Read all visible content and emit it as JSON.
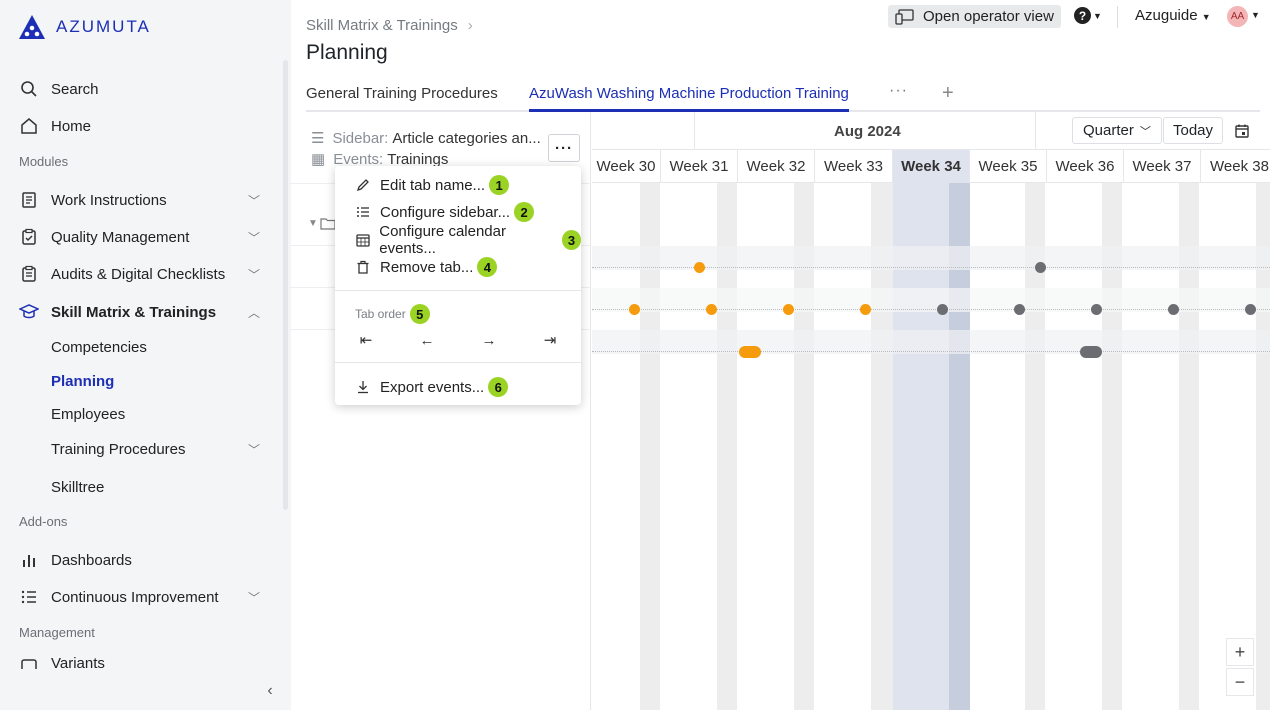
{
  "app": {
    "logo_text": "AZUMUTA"
  },
  "sidebar": {
    "search": "Search",
    "home": "Home",
    "section_modules": "Modules",
    "work_instructions": "Work Instructions",
    "quality_management": "Quality Management",
    "audits": "Audits & Digital Checklists",
    "skill_matrix": "Skill Matrix & Trainings",
    "sub": {
      "competencies": "Competencies",
      "planning": "Planning",
      "employees": "Employees",
      "training_procedures": "Training Procedures",
      "skilltree": "Skilltree"
    },
    "section_addons": "Add-ons",
    "dashboards": "Dashboards",
    "continuous_improvement": "Continuous Improvement",
    "section_management": "Management",
    "variants": "Variants"
  },
  "header": {
    "breadcrumb": "Skill Matrix & Trainings",
    "title": "Planning",
    "operator_view": "Open operator view",
    "workspace": "Azuguide",
    "avatar": "AA"
  },
  "tabs": {
    "tab1": "General Training Procedures",
    "tab2": "AzuWash Washing Machine Production Training"
  },
  "panel": {
    "sidebar_key": "Sidebar:",
    "sidebar_value": "Article categories an...",
    "events_key": "Events:",
    "events_value": "Trainings"
  },
  "menu": {
    "edit_tab": "Edit tab name...",
    "configure_sidebar": "Configure sidebar...",
    "configure_calendar": "Configure calendar events...",
    "remove_tab": "Remove tab...",
    "tab_order": "Tab order",
    "export_events": "Export events...",
    "badges": {
      "b1": "1",
      "b2": "2",
      "b3": "3",
      "b4": "4",
      "b5": "5",
      "b6": "6"
    }
  },
  "calendar": {
    "month": "Aug 2024",
    "view": "Quarter",
    "today": "Today",
    "weeks": [
      "Week 30",
      "Week 31",
      "Week 32",
      "Week 33",
      "Week 34",
      "Week 35",
      "Week 36",
      "Week 37",
      "Week 38"
    ],
    "current_week": "Week 34",
    "colors": {
      "orange": "#f59b0d",
      "gray": "#6b6d72",
      "accent": "#1c2fb5",
      "badge": "#9ad323"
    }
  },
  "zoom": {
    "in": "+",
    "out": "−"
  }
}
